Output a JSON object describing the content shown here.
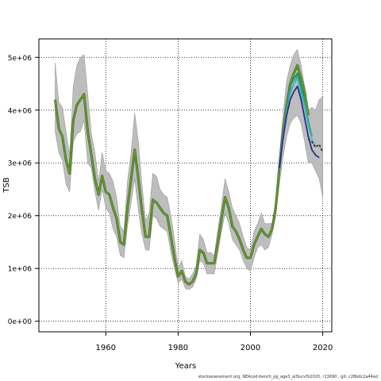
{
  "footer": "stockassessment.org, NEAcod-bench_pg_age3_allSurvTo2020, r13690 , git: c28bdc2a44ad",
  "chart_data": {
    "type": "line",
    "title": "",
    "xlabel": "Years",
    "ylabel": "TSB",
    "xlim": [
      1941.5,
      2022.5
    ],
    "ylim": [
      -200000,
      5350000
    ],
    "x_ticks": [
      1960,
      1980,
      2000,
      2020
    ],
    "y_ticks": [
      0,
      1000000,
      2000000,
      3000000,
      4000000,
      5000000
    ],
    "y_tick_labels": [
      "0e+00",
      "1e+06",
      "2e+06",
      "3e+06",
      "4e+06",
      "5e+06"
    ],
    "grid": true,
    "legend": "none",
    "colors": {
      "band": "#bdbdbd",
      "band_edge": "#9a9a9a",
      "main": "#7a9a1a",
      "retro": [
        "#2b8c5a",
        "#22a884",
        "#4ab5c4",
        "#2c2c8c"
      ],
      "tail": "#333333"
    },
    "band": {
      "x": [
        1946,
        1947,
        1948,
        1949,
        1950,
        1951,
        1952,
        1953,
        1954,
        1955,
        1956,
        1957,
        1958,
        1959,
        1960,
        1961,
        1962,
        1963,
        1964,
        1965,
        1966,
        1967,
        1968,
        1969,
        1970,
        1971,
        1972,
        1973,
        1974,
        1975,
        1976,
        1977,
        1978,
        1979,
        1980,
        1981,
        1982,
        1983,
        1984,
        1985,
        1986,
        1987,
        1988,
        1989,
        1990,
        1991,
        1992,
        1993,
        1994,
        1995,
        1996,
        1997,
        1998,
        1999,
        2000,
        2001,
        2002,
        2003,
        2004,
        2005,
        2006,
        2007,
        2008,
        2009,
        2010,
        2011,
        2012,
        2013,
        2014,
        2015,
        2016,
        2017,
        2018,
        2019,
        2020
      ],
      "lower": [
        3600000,
        3200000,
        3050000,
        2600000,
        2450000,
        3400000,
        3550000,
        3600000,
        3800000,
        3000000,
        2900000,
        2450000,
        2100000,
        2500000,
        2150000,
        2050000,
        1750000,
        1600000,
        1250000,
        1200000,
        1800000,
        2250000,
        2700000,
        2100000,
        1650000,
        1350000,
        1350000,
        2000000,
        1950000,
        1800000,
        1750000,
        1700000,
        1300000,
        1000000,
        720000,
        800000,
        620000,
        600000,
        650000,
        800000,
        1150000,
        1100000,
        900000,
        900000,
        900000,
        1300000,
        1700000,
        2050000,
        1850000,
        1550000,
        1450000,
        1350000,
        1150000,
        1000000,
        950000,
        1200000,
        1400000,
        1450000,
        1350000,
        1400000,
        1650000,
        2000000,
        2600000,
        3100000,
        3500000,
        3750000,
        3850000,
        3900000,
        3750000,
        3400000,
        3000000,
        3000000,
        2850000,
        2700000,
        2350000
      ],
      "upper": [
        4900000,
        4150000,
        4050000,
        3600000,
        3150000,
        4450000,
        4850000,
        5000000,
        5050000,
        4300000,
        3550000,
        3200000,
        2650000,
        3200000,
        2850000,
        2800000,
        2650000,
        2350000,
        1800000,
        1700000,
        2650000,
        3200000,
        3950000,
        3400000,
        2600000,
        1900000,
        2050000,
        2800000,
        2750000,
        2500000,
        2400000,
        2350000,
        2000000,
        1550000,
        1000000,
        1150000,
        850000,
        800000,
        900000,
        1050000,
        1650000,
        1550000,
        1300000,
        1300000,
        1250000,
        1750000,
        2200000,
        2700000,
        2450000,
        2150000,
        2000000,
        1850000,
        1600000,
        1400000,
        1350000,
        1700000,
        1850000,
        2050000,
        1850000,
        1850000,
        1850000,
        2300000,
        3100000,
        3900000,
        4550000,
        4850000,
        5050000,
        5150000,
        4850000,
        4450000,
        4000000,
        4050000,
        4000000,
        4200000,
        4250000
      ]
    },
    "series": [
      {
        "x": [
          1946,
          1947,
          1948,
          1949,
          1950,
          1951,
          1952,
          1953,
          1954,
          1955,
          1956,
          1957,
          1958,
          1959,
          1960,
          1961,
          1962,
          1963,
          1964,
          1965,
          1966,
          1967,
          1968,
          1969,
          1970,
          1971,
          1972,
          1973,
          1974,
          1975,
          1976,
          1977,
          1978,
          1979,
          1980,
          1981,
          1982,
          1983,
          1984,
          1985,
          1986,
          1987,
          1988,
          1989,
          1990,
          1991,
          1992,
          1993,
          1994,
          1995,
          1996,
          1997,
          1998,
          1999,
          2000,
          2001,
          2002,
          2003,
          2004,
          2005,
          2006,
          2007,
          2008,
          2009,
          2010,
          2011,
          2012,
          2013,
          2014,
          2015,
          2016
        ],
        "y": [
          4200000,
          3650000,
          3500000,
          3050000,
          2800000,
          3800000,
          4100000,
          4200000,
          4300000,
          3600000,
          3150000,
          2700000,
          2400000,
          2750000,
          2450000,
          2400000,
          2150000,
          1950000,
          1500000,
          1450000,
          2150000,
          2700000,
          3250000,
          2700000,
          2100000,
          1600000,
          1600000,
          2300000,
          2250000,
          2150000,
          2050000,
          2000000,
          1600000,
          1200000,
          850000,
          950000,
          750000,
          700000,
          750000,
          900000,
          1350000,
          1300000,
          1100000,
          1100000,
          1100000,
          1500000,
          1950000,
          2350000,
          2150000,
          1800000,
          1700000,
          1550000,
          1350000,
          1200000,
          1200000,
          1450000,
          1600000,
          1750000,
          1650000,
          1600000,
          1750000,
          2150000,
          2900000,
          3600000,
          4100000,
          4500000,
          4700000,
          4850000,
          4600000,
          4350000,
          3900000
        ]
      },
      {
        "x": [
          2008,
          2009,
          2010,
          2011,
          2012,
          2013,
          2014,
          2015
        ],
        "y": [
          2900000,
          3550000,
          4000000,
          4450000,
          4600000,
          4700000,
          4500000,
          4200000
        ]
      },
      {
        "x": [
          2008,
          2009,
          2010,
          2011,
          2012,
          2013,
          2014,
          2015,
          2016,
          2017
        ],
        "y": [
          2900000,
          3500000,
          3950000,
          4350000,
          4500000,
          4650000,
          4400000,
          4150000,
          3800000,
          3500000
        ]
      },
      {
        "x": [
          2008,
          2009,
          2010,
          2011,
          2012,
          2013,
          2014,
          2015,
          2016,
          2017,
          2018
        ],
        "y": [
          2900000,
          3500000,
          3950000,
          4300000,
          4500000,
          4600000,
          4300000,
          4050000,
          3700000,
          3450000,
          3300000
        ]
      },
      {
        "x": [
          2008,
          2009,
          2010,
          2011,
          2012,
          2013,
          2014,
          2015,
          2016,
          2017,
          2018,
          2019
        ],
        "y": [
          2900000,
          3450000,
          3900000,
          4200000,
          4350000,
          4450000,
          4200000,
          3850000,
          3500000,
          3250000,
          3150000,
          3100000
        ]
      },
      {
        "x": [
          2016,
          2017,
          2018,
          2019,
          2020
        ],
        "y": [
          3450000,
          3400000,
          3300000,
          3350000,
          3200000
        ]
      }
    ]
  }
}
